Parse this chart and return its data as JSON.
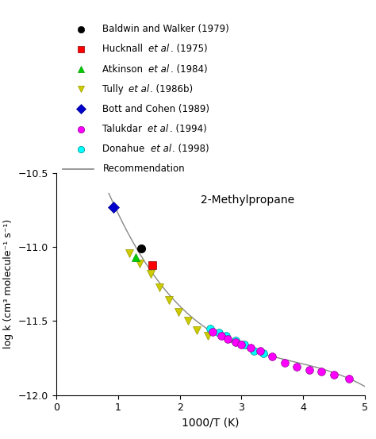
{
  "title": "2-Methylpropane",
  "xlabel": "1000/T (K)",
  "ylabel": "log k (cm³ molecule⁻¹ s⁻¹)",
  "xlim": [
    0,
    5
  ],
  "ylim": [
    -12.0,
    -10.5
  ],
  "yticks": [
    -12.0,
    -11.5,
    -11.0,
    -10.5
  ],
  "xticks": [
    0,
    1,
    2,
    3,
    4,
    5
  ],
  "baldwin_walker": {
    "x": [
      1.37
    ],
    "y": [
      -11.01
    ],
    "color": "black",
    "marker": "o",
    "size": 7,
    "label_plain": "Baldwin and Walker (1979)",
    "label_parts": [
      [
        "Baldwin and Walker (1979)",
        false
      ]
    ]
  },
  "hucknall": {
    "x": [
      1.55
    ],
    "y": [
      -11.12
    ],
    "color": "red",
    "marker": "s",
    "size": 7,
    "label_parts": [
      [
        "Hucknall ",
        false
      ],
      [
        "et al",
        true
      ],
      [
        ". (1975)",
        false
      ]
    ]
  },
  "atkinson": {
    "x": [
      1.28
    ],
    "y": [
      -11.07
    ],
    "color": "green",
    "marker": "^",
    "size": 7,
    "label_parts": [
      [
        "Atkinson ",
        false
      ],
      [
        "et al",
        true
      ],
      [
        ". (1984)",
        false
      ]
    ]
  },
  "tully": {
    "x": [
      1.18,
      1.35,
      1.53,
      1.67,
      1.83,
      1.98,
      2.13,
      2.28,
      2.45
    ],
    "y": [
      -11.04,
      -11.11,
      -11.18,
      -11.27,
      -11.36,
      -11.44,
      -11.5,
      -11.56,
      -11.6
    ],
    "color": "#cccc00",
    "edgecolor": "#999900",
    "marker": "v",
    "size": 7,
    "label_parts": [
      [
        "Tully ",
        false
      ],
      [
        "et al",
        true
      ],
      [
        ". (1986b)",
        false
      ]
    ]
  },
  "bott_cohen": {
    "x": [
      0.93
    ],
    "y": [
      -10.73
    ],
    "color": "#0000cc",
    "marker": "D",
    "size": 7,
    "label_plain": "Bott and Cohen (1989)"
  },
  "talukdar": {
    "x": [
      2.53,
      2.68,
      2.78,
      2.9,
      3.0,
      3.15,
      3.3,
      3.5,
      3.7,
      3.9,
      4.1,
      4.3,
      4.5,
      4.75
    ],
    "y": [
      -11.57,
      -11.6,
      -11.62,
      -11.64,
      -11.66,
      -11.68,
      -11.7,
      -11.74,
      -11.78,
      -11.81,
      -11.83,
      -11.84,
      -11.86,
      -11.89
    ],
    "color": "#ff00ff",
    "marker": "o",
    "size": 7,
    "label_parts": [
      [
        "Talukdar ",
        false
      ],
      [
        "et al",
        true
      ],
      [
        ". (1994)",
        false
      ]
    ]
  },
  "donahue": {
    "x": [
      2.5,
      2.63,
      2.75,
      2.9,
      3.05,
      3.2,
      3.35
    ],
    "y": [
      -11.55,
      -11.58,
      -11.6,
      -11.63,
      -11.66,
      -11.7,
      -11.72
    ],
    "color": "cyan",
    "marker": "o",
    "size": 7,
    "label_parts": [
      [
        "Donahue ",
        false
      ],
      [
        "et al",
        true
      ],
      [
        ". (1998)",
        false
      ]
    ]
  },
  "recommendation": {
    "label": "Recommendation",
    "color": "#888888",
    "linewidth": 1.0
  }
}
